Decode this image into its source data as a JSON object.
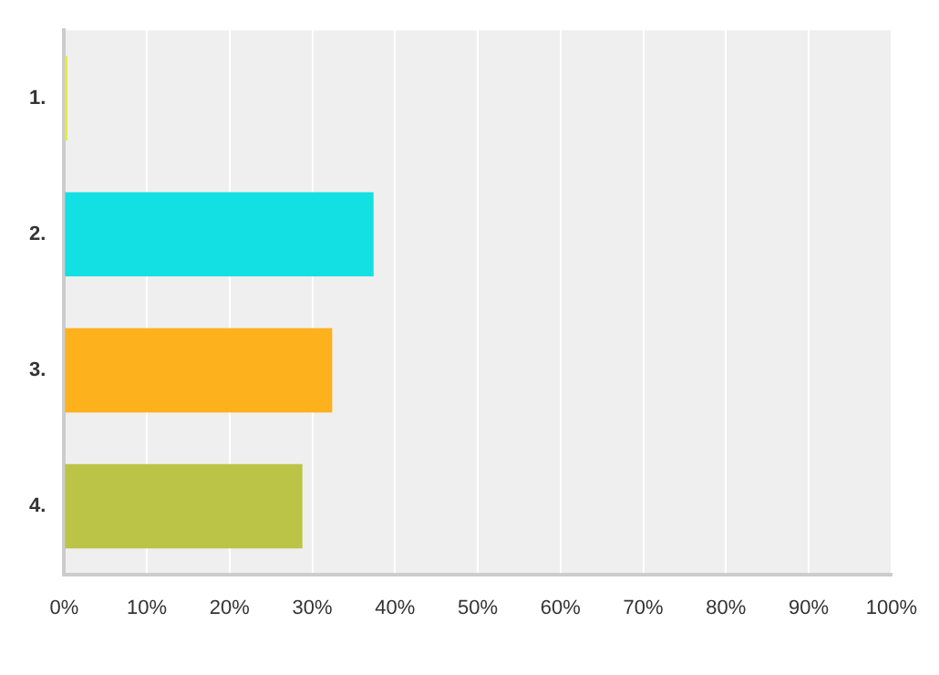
{
  "chart_data": {
    "type": "bar",
    "orientation": "horizontal",
    "categories": [
      "1.",
      "2.",
      "3.",
      "4."
    ],
    "values": [
      0.4,
      37.4,
      32.4,
      28.8
    ],
    "colors": [
      "#e4ec3c",
      "#13e0e3",
      "#fdb11d",
      "#bbc446"
    ],
    "xlim": [
      0,
      100
    ],
    "xticks": [
      {
        "value": 0,
        "label": "0%"
      },
      {
        "value": 10,
        "label": "10%"
      },
      {
        "value": 20,
        "label": "20%"
      },
      {
        "value": 30,
        "label": "30%"
      },
      {
        "value": 40,
        "label": "40%"
      },
      {
        "value": 50,
        "label": "50%"
      },
      {
        "value": 60,
        "label": "60%"
      },
      {
        "value": 70,
        "label": "70%"
      },
      {
        "value": 80,
        "label": "80%"
      },
      {
        "value": 90,
        "label": "90%"
      },
      {
        "value": 100,
        "label": "100%"
      }
    ],
    "grid": "x",
    "legend": false
  }
}
